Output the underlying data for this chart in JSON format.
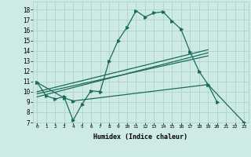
{
  "xlabel": "Humidex (Indice chaleur)",
  "bg_color": "#ceeae5",
  "line_color": "#1a6b5a",
  "grid_color": "#aed4cc",
  "xlim": [
    -0.5,
    23.5
  ],
  "ylim": [
    7,
    18.8
  ],
  "xticks": [
    0,
    1,
    2,
    3,
    4,
    5,
    6,
    7,
    8,
    9,
    10,
    11,
    12,
    13,
    14,
    15,
    16,
    17,
    18,
    19,
    20,
    21,
    22,
    23
  ],
  "yticks": [
    7,
    8,
    9,
    10,
    11,
    12,
    13,
    14,
    15,
    16,
    17,
    18
  ],
  "line1_x": [
    0,
    1,
    2,
    3,
    4,
    5,
    6,
    7,
    8,
    9,
    10,
    11,
    12,
    13,
    14,
    15,
    16,
    17,
    18,
    19,
    20
  ],
  "line1_y": [
    10.9,
    9.6,
    9.3,
    9.5,
    7.2,
    8.8,
    10.1,
    10.0,
    13.0,
    15.0,
    16.3,
    17.9,
    17.3,
    17.7,
    17.8,
    16.9,
    16.1,
    13.9,
    12.0,
    10.7,
    9.0
  ],
  "line3_x": [
    0,
    3,
    4,
    19,
    23
  ],
  "line3_y": [
    10.9,
    9.4,
    9.1,
    10.7,
    7.0
  ],
  "line4_x": [
    0,
    19
  ],
  "line4_y": [
    9.5,
    13.8
  ],
  "line5_x": [
    0,
    19
  ],
  "line5_y": [
    9.8,
    13.5
  ],
  "line6_x": [
    0,
    19
  ],
  "line6_y": [
    10.0,
    14.1
  ],
  "marker_size": 2.5,
  "linewidth": 0.9
}
